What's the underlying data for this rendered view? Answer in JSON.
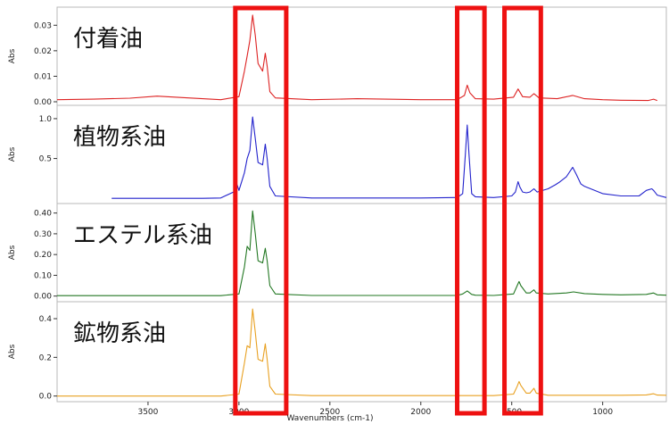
{
  "chart_data": {
    "type": "line",
    "xlabel": "Wavenumbers (cm-1)",
    "xlim": [
      4000,
      650
    ],
    "x_ticks": [
      "3500",
      "3000",
      "2500",
      "2000",
      "1500",
      "1000"
    ],
    "x_tick_values": [
      3500,
      3000,
      2500,
      2000,
      1500,
      1000
    ],
    "ylabel": "Abs",
    "highlight_ranges": [
      [
        3020,
        2740
      ],
      [
        1800,
        1650
      ],
      [
        1540,
        1340
      ]
    ],
    "highlight_color": "#ee1111",
    "panels": [
      {
        "label": "付着油",
        "color": "#dd2222",
        "ylim": [
          0,
          0.035
        ],
        "y_ticks": [
          "0.03",
          "0.02",
          "0.01",
          "0.00"
        ],
        "y_tick_values": [
          0.03,
          0.02,
          0.01,
          0.0
        ],
        "points": [
          [
            4000,
            0.0008
          ],
          [
            3800,
            0.001
          ],
          [
            3600,
            0.0014
          ],
          [
            3450,
            0.0022
          ],
          [
            3300,
            0.0016
          ],
          [
            3100,
            0.0008
          ],
          [
            3000,
            0.002
          ],
          [
            2970,
            0.012
          ],
          [
            2955,
            0.018
          ],
          [
            2940,
            0.024
          ],
          [
            2925,
            0.034
          ],
          [
            2910,
            0.026
          ],
          [
            2895,
            0.015
          ],
          [
            2870,
            0.012
          ],
          [
            2855,
            0.019
          ],
          [
            2845,
            0.014
          ],
          [
            2830,
            0.004
          ],
          [
            2800,
            0.0015
          ],
          [
            2600,
            0.0008
          ],
          [
            2350,
            0.0012
          ],
          [
            2000,
            0.0008
          ],
          [
            1800,
            0.0008
          ],
          [
            1760,
            0.0025
          ],
          [
            1745,
            0.0065
          ],
          [
            1730,
            0.0035
          ],
          [
            1700,
            0.0012
          ],
          [
            1600,
            0.001
          ],
          [
            1490,
            0.0018
          ],
          [
            1465,
            0.005
          ],
          [
            1440,
            0.002
          ],
          [
            1400,
            0.0018
          ],
          [
            1378,
            0.0032
          ],
          [
            1350,
            0.0015
          ],
          [
            1250,
            0.0012
          ],
          [
            1165,
            0.0025
          ],
          [
            1100,
            0.0012
          ],
          [
            1000,
            0.0008
          ],
          [
            900,
            0.0006
          ],
          [
            750,
            0.0005
          ],
          [
            720,
            0.001
          ],
          [
            700,
            0.0005
          ]
        ]
      },
      {
        "label": "植物系油",
        "color": "#2222cc",
        "ylim": [
          -0.02,
          1.1
        ],
        "y_ticks": [
          "1.0",
          "0.5"
        ],
        "y_tick_values": [
          1.0,
          0.5
        ],
        "points": [
          [
            3700,
            0.0
          ],
          [
            3200,
            0.0
          ],
          [
            3100,
            0.005
          ],
          [
            3030,
            0.08
          ],
          [
            3010,
            0.17
          ],
          [
            3000,
            0.1
          ],
          [
            2970,
            0.32
          ],
          [
            2955,
            0.5
          ],
          [
            2940,
            0.6
          ],
          [
            2925,
            1.02
          ],
          [
            2910,
            0.75
          ],
          [
            2895,
            0.45
          ],
          [
            2870,
            0.42
          ],
          [
            2855,
            0.68
          ],
          [
            2845,
            0.5
          ],
          [
            2830,
            0.15
          ],
          [
            2800,
            0.03
          ],
          [
            2600,
            0.005
          ],
          [
            2000,
            0.005
          ],
          [
            1800,
            0.01
          ],
          [
            1770,
            0.06
          ],
          [
            1755,
            0.55
          ],
          [
            1745,
            0.92
          ],
          [
            1735,
            0.55
          ],
          [
            1720,
            0.06
          ],
          [
            1700,
            0.02
          ],
          [
            1600,
            0.01
          ],
          [
            1500,
            0.03
          ],
          [
            1480,
            0.08
          ],
          [
            1465,
            0.21
          ],
          [
            1455,
            0.14
          ],
          [
            1440,
            0.08
          ],
          [
            1420,
            0.07
          ],
          [
            1400,
            0.08
          ],
          [
            1378,
            0.12
          ],
          [
            1360,
            0.08
          ],
          [
            1300,
            0.12
          ],
          [
            1260,
            0.17
          ],
          [
            1240,
            0.2
          ],
          [
            1200,
            0.27
          ],
          [
            1165,
            0.39
          ],
          [
            1145,
            0.3
          ],
          [
            1120,
            0.18
          ],
          [
            1100,
            0.15
          ],
          [
            1000,
            0.06
          ],
          [
            900,
            0.03
          ],
          [
            800,
            0.03
          ],
          [
            760,
            0.1
          ],
          [
            730,
            0.12
          ],
          [
            720,
            0.1
          ],
          [
            700,
            0.04
          ],
          [
            650,
            0.01
          ]
        ]
      },
      {
        "label": "エステル系油",
        "color": "#227722",
        "ylim": [
          -0.01,
          0.42
        ],
        "y_ticks": [
          "0.40",
          "0.30",
          "0.20",
          "0.10",
          "0.00"
        ],
        "y_tick_values": [
          0.4,
          0.3,
          0.2,
          0.1,
          0.0
        ],
        "points": [
          [
            4000,
            0.002
          ],
          [
            3500,
            0.002
          ],
          [
            3100,
            0.002
          ],
          [
            3000,
            0.01
          ],
          [
            2970,
            0.14
          ],
          [
            2955,
            0.24
          ],
          [
            2940,
            0.22
          ],
          [
            2925,
            0.41
          ],
          [
            2910,
            0.3
          ],
          [
            2895,
            0.17
          ],
          [
            2870,
            0.16
          ],
          [
            2855,
            0.23
          ],
          [
            2845,
            0.17
          ],
          [
            2830,
            0.05
          ],
          [
            2800,
            0.01
          ],
          [
            2600,
            0.003
          ],
          [
            2000,
            0.003
          ],
          [
            1800,
            0.003
          ],
          [
            1770,
            0.01
          ],
          [
            1745,
            0.025
          ],
          [
            1720,
            0.008
          ],
          [
            1700,
            0.004
          ],
          [
            1600,
            0.003
          ],
          [
            1490,
            0.01
          ],
          [
            1470,
            0.05
          ],
          [
            1460,
            0.07
          ],
          [
            1450,
            0.05
          ],
          [
            1420,
            0.015
          ],
          [
            1400,
            0.015
          ],
          [
            1378,
            0.03
          ],
          [
            1365,
            0.015
          ],
          [
            1300,
            0.01
          ],
          [
            1200,
            0.015
          ],
          [
            1160,
            0.02
          ],
          [
            1100,
            0.012
          ],
          [
            1000,
            0.008
          ],
          [
            900,
            0.006
          ],
          [
            760,
            0.008
          ],
          [
            720,
            0.015
          ],
          [
            700,
            0.006
          ],
          [
            650,
            0.004
          ]
        ]
      },
      {
        "label": "鉱物系油",
        "color": "#e8a020",
        "ylim": [
          -0.02,
          0.46
        ],
        "y_ticks": [
          "0.4",
          "0.2",
          "0.0"
        ],
        "y_tick_values": [
          0.4,
          0.2,
          0.0
        ],
        "points": [
          [
            4000,
            0.0
          ],
          [
            3500,
            0.0
          ],
          [
            3100,
            0.0
          ],
          [
            3000,
            0.01
          ],
          [
            2970,
            0.17
          ],
          [
            2955,
            0.26
          ],
          [
            2940,
            0.25
          ],
          [
            2925,
            0.45
          ],
          [
            2910,
            0.33
          ],
          [
            2895,
            0.19
          ],
          [
            2870,
            0.18
          ],
          [
            2855,
            0.27
          ],
          [
            2845,
            0.19
          ],
          [
            2830,
            0.05
          ],
          [
            2800,
            0.01
          ],
          [
            2600,
            0.002
          ],
          [
            2000,
            0.002
          ],
          [
            1800,
            0.002
          ],
          [
            1600,
            0.002
          ],
          [
            1490,
            0.01
          ],
          [
            1470,
            0.05
          ],
          [
            1460,
            0.075
          ],
          [
            1450,
            0.055
          ],
          [
            1420,
            0.015
          ],
          [
            1400,
            0.015
          ],
          [
            1378,
            0.04
          ],
          [
            1365,
            0.015
          ],
          [
            1300,
            0.004
          ],
          [
            1100,
            0.004
          ],
          [
            900,
            0.004
          ],
          [
            760,
            0.006
          ],
          [
            720,
            0.012
          ],
          [
            700,
            0.005
          ],
          [
            650,
            0.004
          ]
        ]
      }
    ]
  }
}
